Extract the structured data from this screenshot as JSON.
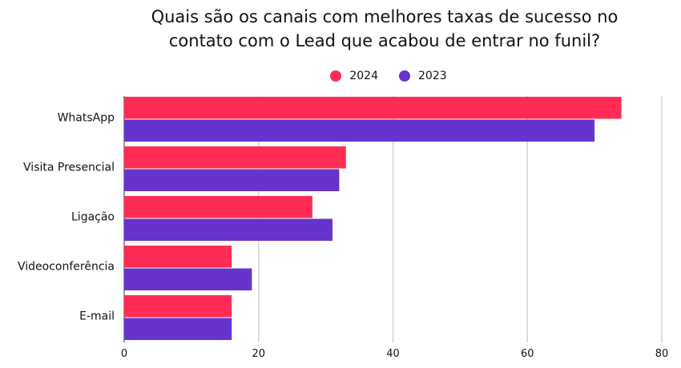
{
  "title_lines": [
    "Quais são os canais com melhores taxas de sucesso no",
    "contato com o Lead que acabou de entrar no funil?"
  ],
  "chart_data": {
    "type": "bar",
    "orientation": "horizontal",
    "title": "Quais são os canais com melhores taxas de sucesso no contato com o Lead que acabou de entrar no funil?",
    "categories": [
      "WhatsApp",
      "Visita Presencial",
      "Ligação",
      "Videoconferência",
      "E-mail"
    ],
    "series": [
      {
        "name": "2024",
        "color": "#ff2d55",
        "values": [
          74,
          33,
          28,
          16,
          16
        ]
      },
      {
        "name": "2023",
        "color": "#6633cc",
        "values": [
          70,
          32,
          31,
          19,
          16
        ]
      }
    ],
    "xlim": [
      0,
      80
    ],
    "xticks": [
      "0",
      "20",
      "40",
      "60",
      "80"
    ],
    "grid": true,
    "legend_position": "top"
  }
}
